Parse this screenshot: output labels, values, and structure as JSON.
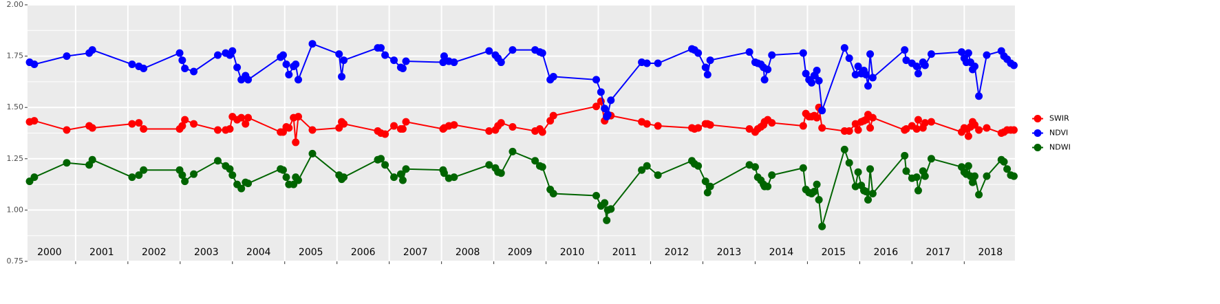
{
  "chart_data": {
    "type": "line",
    "x": [
      2000.12,
      2000.21,
      2000.83,
      2001.26,
      2001.32,
      2002.08,
      2002.21,
      2002.3,
      2002.99,
      2003.04,
      2003.09,
      2003.26,
      2003.72,
      2003.87,
      2003.95,
      2004.0,
      2004.09,
      2004.17,
      2004.25,
      2004.3,
      2004.92,
      2004.97,
      2005.03,
      2005.08,
      2005.17,
      2005.21,
      2005.26,
      2005.53,
      2006.04,
      2006.09,
      2006.13,
      2006.78,
      2006.84,
      2006.92,
      2007.09,
      2007.22,
      2007.26,
      2007.32,
      2008.03,
      2008.05,
      2008.14,
      2008.24,
      2008.91,
      2009.03,
      2009.08,
      2009.14,
      2009.36,
      2009.79,
      2009.88,
      2009.93,
      2010.08,
      2010.14,
      2010.96,
      2011.05,
      2011.12,
      2011.16,
      2011.18,
      2011.24,
      2011.83,
      2011.93,
      2012.14,
      2012.79,
      2012.84,
      2012.91,
      2013.05,
      2013.09,
      2013.14,
      2013.89,
      2014.0,
      2014.05,
      2014.11,
      2014.16,
      2014.18,
      2014.24,
      2014.32,
      2014.92,
      2014.97,
      2015.03,
      2015.08,
      2015.13,
      2015.18,
      2015.22,
      2015.28,
      2015.71,
      2015.8,
      2015.92,
      2015.97,
      2016.03,
      2016.08,
      2016.12,
      2016.16,
      2016.2,
      2016.25,
      2016.86,
      2016.89,
      2017.0,
      2017.09,
      2017.12,
      2017.21,
      2017.25,
      2017.37,
      2017.95,
      2018.0,
      2018.04,
      2018.08,
      2018.12,
      2018.16,
      2018.2,
      2018.28,
      2018.43,
      2018.71,
      2018.76,
      2018.82,
      2018.89,
      2018.95
    ],
    "series": [
      {
        "name": "SWIR",
        "color": "#ff0000",
        "values": [
          1.43,
          1.435,
          1.39,
          1.41,
          1.4,
          1.42,
          1.425,
          1.395,
          1.395,
          1.41,
          1.44,
          1.42,
          1.39,
          1.39,
          1.395,
          1.455,
          1.44,
          1.45,
          1.42,
          1.45,
          1.38,
          1.38,
          1.405,
          1.4,
          1.45,
          1.33,
          1.455,
          1.39,
          1.4,
          1.43,
          1.42,
          1.385,
          1.375,
          1.37,
          1.41,
          1.395,
          1.395,
          1.43,
          1.395,
          1.4,
          1.41,
          1.415,
          1.385,
          1.39,
          1.41,
          1.425,
          1.405,
          1.385,
          1.395,
          1.38,
          1.435,
          1.46,
          1.505,
          1.53,
          1.435,
          1.455,
          1.465,
          1.46,
          1.43,
          1.42,
          1.41,
          1.4,
          1.395,
          1.4,
          1.42,
          1.42,
          1.415,
          1.395,
          1.38,
          1.395,
          1.405,
          1.415,
          1.43,
          1.44,
          1.425,
          1.41,
          1.47,
          1.455,
          1.455,
          1.46,
          1.45,
          1.5,
          1.4,
          1.385,
          1.385,
          1.42,
          1.39,
          1.43,
          1.435,
          1.44,
          1.465,
          1.4,
          1.45,
          1.39,
          1.395,
          1.41,
          1.395,
          1.44,
          1.4,
          1.425,
          1.43,
          1.38,
          1.4,
          1.395,
          1.36,
          1.405,
          1.43,
          1.415,
          1.39,
          1.4,
          1.375,
          1.38,
          1.39,
          1.39,
          1.39
        ]
      },
      {
        "name": "NDVI",
        "color": "#0000ff",
        "values": [
          1.72,
          1.71,
          1.75,
          1.765,
          1.78,
          1.71,
          1.7,
          1.69,
          1.765,
          1.73,
          1.69,
          1.675,
          1.755,
          1.765,
          1.755,
          1.775,
          1.695,
          1.635,
          1.655,
          1.635,
          1.745,
          1.755,
          1.71,
          1.66,
          1.7,
          1.71,
          1.635,
          1.81,
          1.76,
          1.65,
          1.73,
          1.79,
          1.79,
          1.755,
          1.73,
          1.695,
          1.69,
          1.725,
          1.72,
          1.75,
          1.725,
          1.72,
          1.775,
          1.755,
          1.74,
          1.72,
          1.78,
          1.78,
          1.77,
          1.765,
          1.635,
          1.65,
          1.635,
          1.575,
          1.495,
          1.455,
          1.465,
          1.535,
          1.72,
          1.715,
          1.715,
          1.785,
          1.78,
          1.765,
          1.695,
          1.66,
          1.73,
          1.77,
          1.72,
          1.715,
          1.71,
          1.695,
          1.635,
          1.685,
          1.755,
          1.765,
          1.665,
          1.635,
          1.62,
          1.655,
          1.68,
          1.63,
          1.485,
          1.79,
          1.74,
          1.66,
          1.7,
          1.665,
          1.68,
          1.66,
          1.605,
          1.76,
          1.645,
          1.78,
          1.73,
          1.715,
          1.7,
          1.665,
          1.72,
          1.705,
          1.76,
          1.77,
          1.74,
          1.72,
          1.765,
          1.72,
          1.685,
          1.7,
          1.555,
          1.755,
          1.775,
          1.75,
          1.735,
          1.715,
          1.705
        ]
      },
      {
        "name": "NDWI",
        "color": "#006400",
        "values": [
          1.14,
          1.16,
          1.23,
          1.22,
          1.245,
          1.16,
          1.17,
          1.195,
          1.195,
          1.17,
          1.14,
          1.175,
          1.24,
          1.215,
          1.2,
          1.17,
          1.125,
          1.105,
          1.135,
          1.13,
          1.2,
          1.195,
          1.16,
          1.125,
          1.125,
          1.16,
          1.145,
          1.275,
          1.17,
          1.15,
          1.16,
          1.245,
          1.25,
          1.22,
          1.16,
          1.175,
          1.145,
          1.2,
          1.195,
          1.18,
          1.155,
          1.16,
          1.22,
          1.205,
          1.185,
          1.18,
          1.285,
          1.24,
          1.215,
          1.21,
          1.1,
          1.08,
          1.07,
          1.02,
          1.035,
          0.95,
          1.0,
          1.005,
          1.195,
          1.215,
          1.17,
          1.24,
          1.225,
          1.215,
          1.14,
          1.085,
          1.115,
          1.22,
          1.21,
          1.16,
          1.145,
          1.125,
          1.115,
          1.115,
          1.17,
          1.205,
          1.1,
          1.085,
          1.08,
          1.09,
          1.125,
          1.05,
          0.92,
          1.295,
          1.23,
          1.115,
          1.185,
          1.12,
          1.095,
          1.09,
          1.05,
          1.2,
          1.08,
          1.265,
          1.19,
          1.155,
          1.16,
          1.095,
          1.19,
          1.165,
          1.25,
          1.21,
          1.185,
          1.175,
          1.215,
          1.165,
          1.135,
          1.165,
          1.075,
          1.165,
          1.245,
          1.235,
          1.2,
          1.17,
          1.165
        ]
      }
    ],
    "xlim": [
      2000.08,
      2018.97
    ],
    "xticks": [
      2001,
      2002,
      2003,
      2004,
      2005,
      2006,
      2007,
      2008,
      2009,
      2010,
      2011,
      2012,
      2013,
      2014,
      2015,
      2016,
      2017,
      2018
    ],
    "ylim": [
      0.75,
      2.0
    ],
    "yticks": [
      {
        "value": 0.75,
        "label": "0.75"
      },
      {
        "value": 1.0,
        "label": "1.00"
      },
      {
        "value": 1.25,
        "label": "1.25"
      },
      {
        "value": 1.5,
        "label": "1.50"
      },
      {
        "value": 1.75,
        "label": "1.75"
      },
      {
        "value": 2.0,
        "label": "2.00"
      }
    ],
    "annotations": [
      {
        "text": "2000",
        "x": 2000.5
      },
      {
        "text": "2001",
        "x": 2001.5
      },
      {
        "text": "2002",
        "x": 2002.5
      },
      {
        "text": "2003",
        "x": 2003.5
      },
      {
        "text": "2004",
        "x": 2004.5
      },
      {
        "text": "2005",
        "x": 2005.5
      },
      {
        "text": "2006",
        "x": 2006.5
      },
      {
        "text": "2007",
        "x": 2007.5
      },
      {
        "text": "2008",
        "x": 2008.5
      },
      {
        "text": "2009",
        "x": 2009.5
      },
      {
        "text": "2010",
        "x": 2010.5
      },
      {
        "text": "2011",
        "x": 2011.5
      },
      {
        "text": "2012",
        "x": 2012.5
      },
      {
        "text": "2013",
        "x": 2013.5
      },
      {
        "text": "2014",
        "x": 2014.5
      },
      {
        "text": "2015",
        "x": 2015.5
      },
      {
        "text": "2016",
        "x": 2016.5
      },
      {
        "text": "2017",
        "x": 2017.5
      },
      {
        "text": "2018",
        "x": 2018.5
      }
    ],
    "grid": true,
    "legend": "right"
  }
}
